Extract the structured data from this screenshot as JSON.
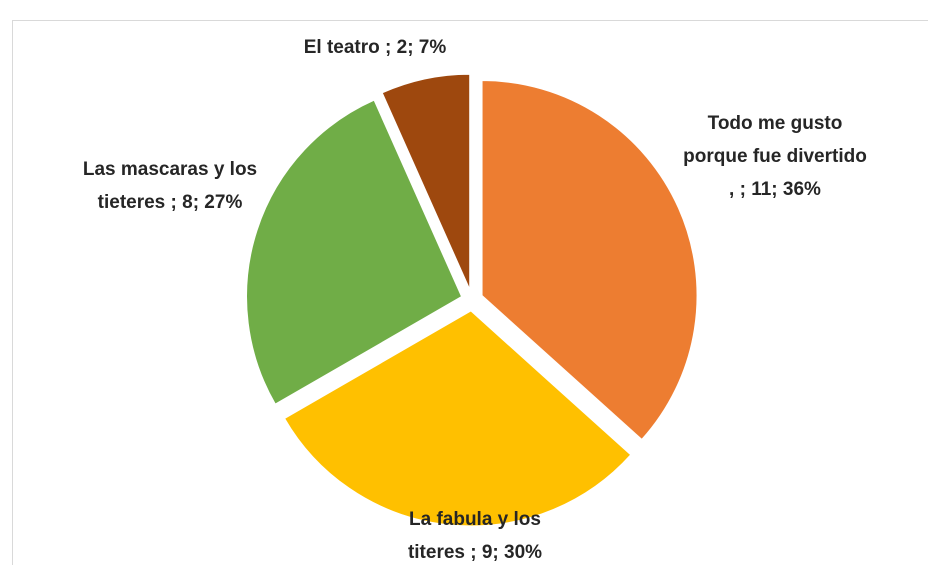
{
  "chart_data": {
    "type": "pie",
    "values": [
      11,
      9,
      8,
      2
    ],
    "value_labels": [
      "Todo me gusto porque fue divertido , ; 11; 36%",
      "La fabula y los titeres ; 9; 30%",
      "Las mascaras y los tieteres ; 8; 27%",
      "El teatro ; 2; 7%"
    ],
    "colors": [
      "#ED7D31",
      "#FFC000",
      "#70AD47",
      "#9E480E"
    ]
  }
}
